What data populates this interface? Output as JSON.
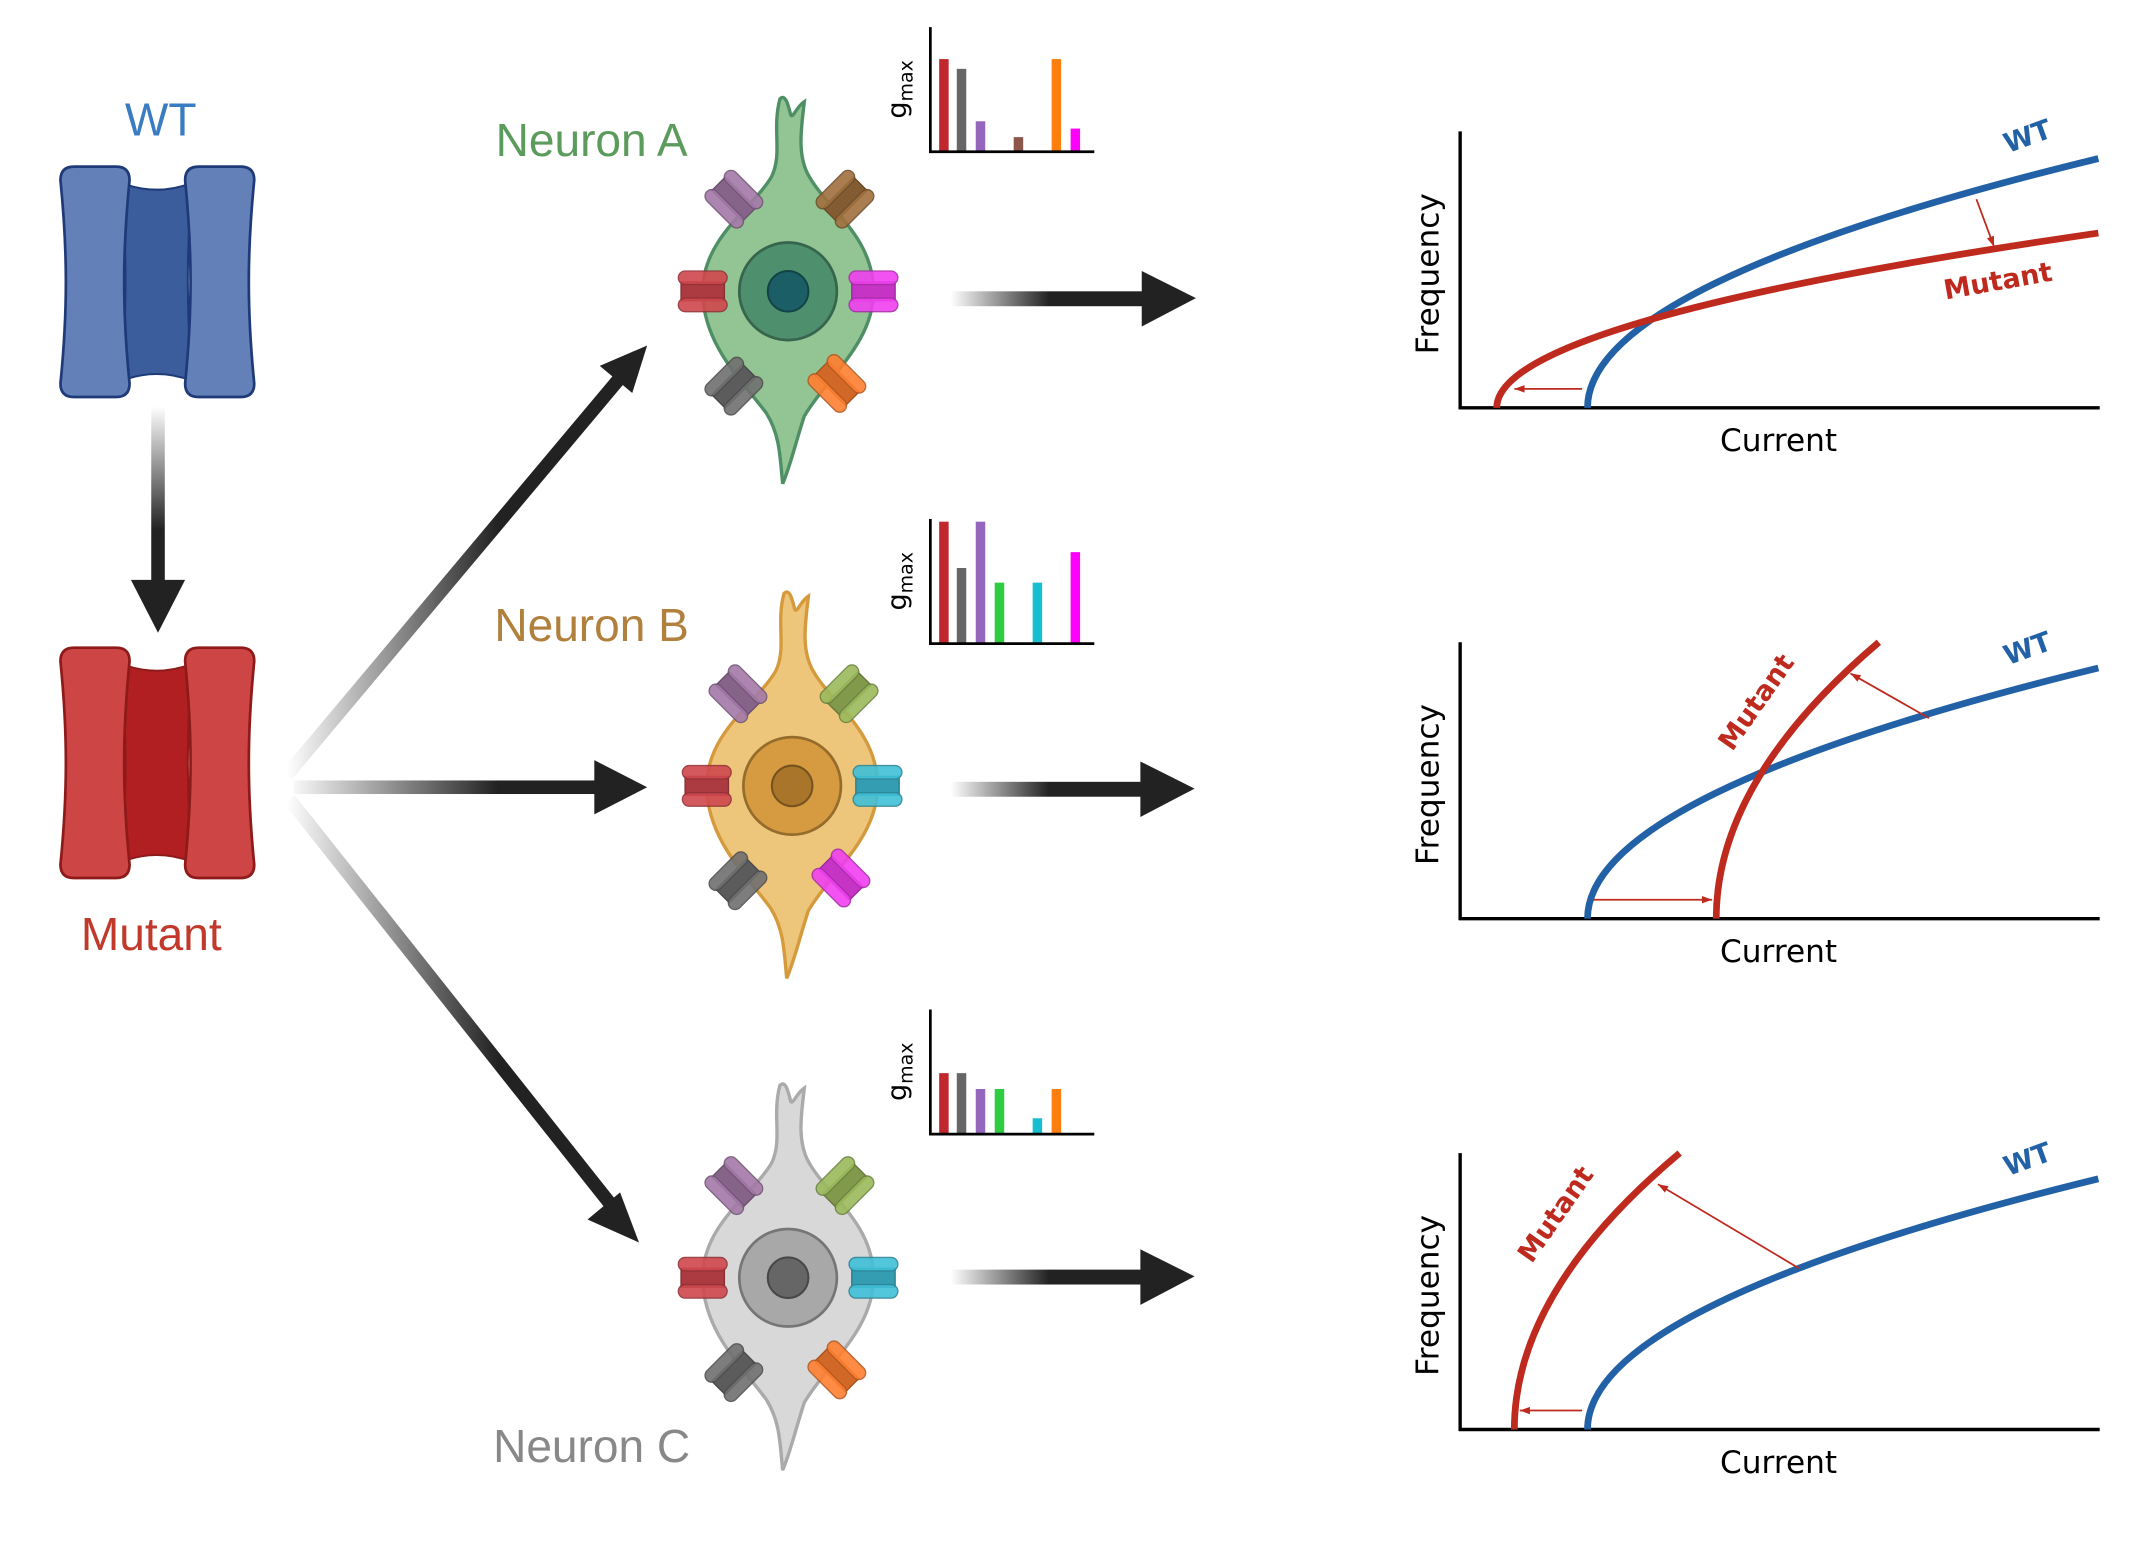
{
  "channel": {
    "wt_label": "WT",
    "mutant_label": "Mutant",
    "wt_colors": {
      "lobe": "#6380b8",
      "core": "#3c5d9c",
      "stroke": "#1f3a78",
      "text": "#3a7cc1"
    },
    "mutant_colors": {
      "lobe": "#cd4545",
      "core": "#b21f22",
      "stroke": "#8e1a1a",
      "text": "#c0392b"
    }
  },
  "neurons": [
    {
      "label": "Neuron A",
      "label_color": "#5b9b5b",
      "body": "#93c493",
      "stroke": "#4f8f65",
      "nucleus": "#4e8f6d",
      "nucleolus": "#1b5e66",
      "channels": [
        "red",
        "purple",
        "brown",
        "magenta",
        "gray",
        "orange"
      ]
    },
    {
      "label": "Neuron B",
      "label_color": "#b0803c",
      "body": "#edc67c",
      "stroke": "#d49a3c",
      "nucleus": "#d69a40",
      "nucleolus": "#a8752a",
      "channels": [
        "red",
        "purple",
        "green",
        "cyan",
        "gray",
        "magenta"
      ]
    },
    {
      "label": "Neuron C",
      "label_color": "#888888",
      "body": "#d8d8d8",
      "stroke": "#aaaaaa",
      "nucleus": "#a8a8a8",
      "nucleolus": "#666666",
      "channels": [
        "red",
        "purple",
        "green",
        "cyan",
        "gray",
        "orange"
      ]
    }
  ],
  "channel_colors": {
    "red": "#c9343a",
    "gray": "#666666",
    "purple": "#9467bd",
    "green": "#2ecc40",
    "brown": "#8c564b",
    "cyan": "#17becf",
    "orange": "#ff7f0e",
    "magenta": "#ff00ff",
    "neuron_green": "#9cba5c",
    "neuron_brown": "#a0703e"
  },
  "chart_data": [
    {
      "type": "bar",
      "ylabel": "g",
      "ylabel_sub": "max",
      "ylim": [
        0,
        1
      ],
      "colors": [
        "#c0282d",
        "#666666",
        "#9467bd",
        "#2ecc40",
        "#8c564b",
        "#17becf",
        "#ff7f0e",
        "#ff00ff"
      ],
      "values": [
        0.76,
        0.68,
        0.25,
        0,
        0.12,
        0,
        0.76,
        0.19
      ]
    },
    {
      "type": "bar",
      "ylabel": "g",
      "ylabel_sub": "max",
      "ylim": [
        0,
        1
      ],
      "colors": [
        "#c0282d",
        "#666666",
        "#9467bd",
        "#2ecc40",
        "#8c564b",
        "#17becf",
        "#ff7f0e",
        "#ff00ff"
      ],
      "values": [
        1.0,
        0.62,
        1.0,
        0.5,
        0,
        0.5,
        0,
        0.75
      ]
    },
    {
      "type": "bar",
      "ylabel": "g",
      "ylabel_sub": "max",
      "ylim": [
        0,
        1
      ],
      "colors": [
        "#c0282d",
        "#666666",
        "#9467bd",
        "#2ecc40",
        "#8c564b",
        "#17becf",
        "#ff7f0e",
        "#ff00ff"
      ],
      "values": [
        0.5,
        0.5,
        0.37,
        0.37,
        0,
        0.13,
        0.37,
        0
      ]
    }
  ],
  "fi_plots": [
    {
      "xlabel": "Current",
      "ylabel": "Frequency",
      "wt_label": "WT",
      "mutant_label": "Mutant",
      "wt_color": "#2361a6",
      "mutant_color": "#bf2a1e"
    },
    {
      "xlabel": "Current",
      "ylabel": "Frequency",
      "wt_label": "WT",
      "mutant_label": "Mutant",
      "wt_color": "#2361a6",
      "mutant_color": "#bf2a1e"
    },
    {
      "xlabel": "Current",
      "ylabel": "Frequency",
      "wt_label": "WT",
      "mutant_label": "Mutant",
      "wt_color": "#2361a6",
      "mutant_color": "#bf2a1e"
    }
  ]
}
